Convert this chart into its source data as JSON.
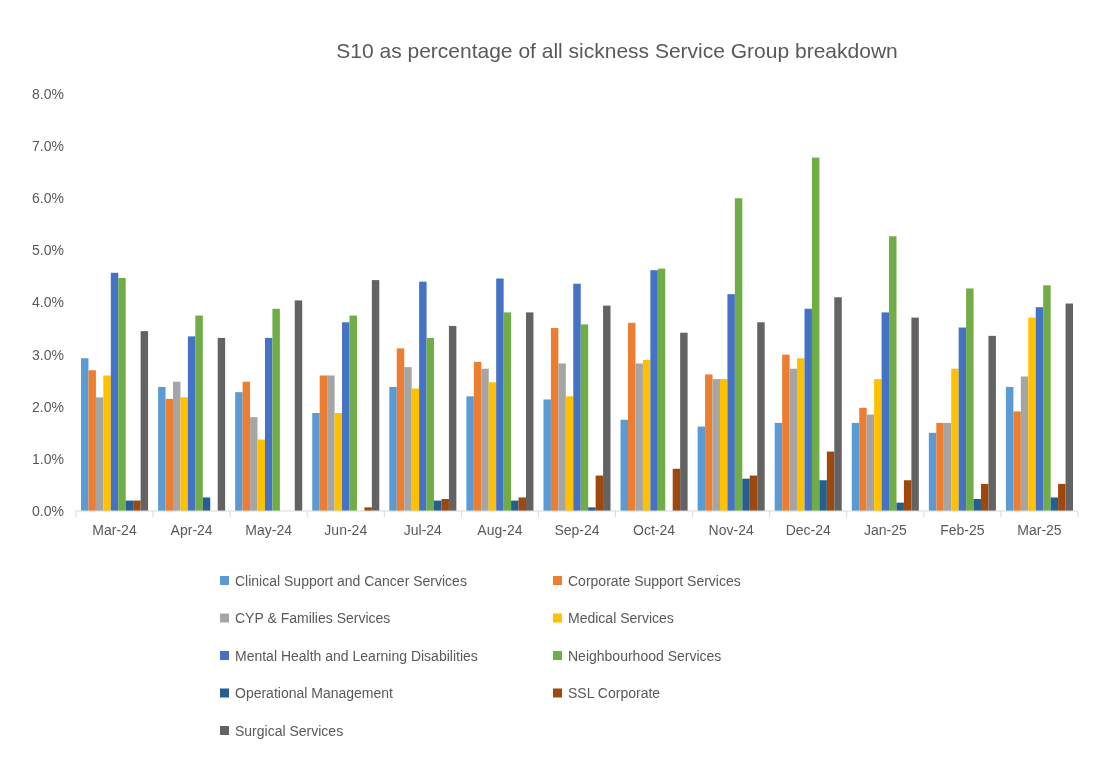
{
  "chart_data": {
    "type": "bar",
    "title": "S10 as percentage of all sickness Service Group breakdown",
    "categories": [
      "Mar-24",
      "Apr-24",
      "May-24",
      "Jun-24",
      "Jul-24",
      "Aug-24",
      "Sep-24",
      "Oct-24",
      "Nov-24",
      "Dec-24",
      "Jan-25",
      "Feb-25",
      "Mar-25"
    ],
    "series": [
      {
        "name": "Clinical Support and Cancer Services",
        "color": "#5b9bd5",
        "values": [
          2.93,
          2.38,
          2.28,
          1.88,
          2.38,
          2.2,
          2.14,
          1.75,
          1.62,
          1.69,
          1.69,
          1.5,
          2.38
        ]
      },
      {
        "name": "Corporate Support Services",
        "color": "#ed7d31",
        "values": [
          2.7,
          2.15,
          2.48,
          2.6,
          3.12,
          2.86,
          3.51,
          3.61,
          2.62,
          3.0,
          1.98,
          1.69,
          1.91
        ]
      },
      {
        "name": "CYP & Families Services",
        "color": "#a5a5a5",
        "values": [
          2.18,
          2.48,
          1.8,
          2.6,
          2.76,
          2.73,
          2.83,
          2.83,
          2.53,
          2.73,
          1.85,
          1.69,
          2.58
        ]
      },
      {
        "name": "Medical Services",
        "color": "#ffc000",
        "values": [
          2.6,
          2.18,
          1.37,
          1.88,
          2.35,
          2.47,
          2.2,
          2.9,
          2.53,
          2.93,
          2.53,
          2.73,
          3.71
        ]
      },
      {
        "name": "Mental Health and Learning Disabilities",
        "color": "#4472c4",
        "values": [
          4.57,
          3.35,
          3.32,
          3.62,
          4.4,
          4.46,
          4.36,
          4.62,
          4.16,
          3.88,
          3.81,
          3.52,
          3.91
        ]
      },
      {
        "name": "Neighbourhood Services",
        "color": "#70ad47",
        "values": [
          4.47,
          3.75,
          3.88,
          3.75,
          3.32,
          3.81,
          3.58,
          4.65,
          6.0,
          6.78,
          5.27,
          4.27,
          4.33
        ]
      },
      {
        "name": "Operational Management",
        "color": "#255e91",
        "values": [
          0.2,
          0.26,
          null,
          null,
          0.2,
          0.2,
          0.07,
          null,
          0.62,
          0.59,
          0.16,
          0.23,
          0.26
        ]
      },
      {
        "name": "SSL Corporate",
        "color": "#9e480e",
        "values": [
          0.2,
          null,
          null,
          0.07,
          0.23,
          0.26,
          0.68,
          0.81,
          0.68,
          1.14,
          0.59,
          0.52,
          0.52
        ]
      },
      {
        "name": "Surgical Services",
        "color": "#636363",
        "values": [
          3.45,
          3.32,
          4.04,
          4.43,
          3.55,
          3.81,
          3.94,
          3.42,
          3.62,
          4.1,
          3.71,
          3.36,
          3.98
        ]
      }
    ],
    "ylim": [
      0,
      8
    ],
    "yticks": [
      {
        "value": 0,
        "label": "0.0%"
      },
      {
        "value": 1,
        "label": "1.0%"
      },
      {
        "value": 2,
        "label": "2.0%"
      },
      {
        "value": 3,
        "label": "3.0%"
      },
      {
        "value": 4,
        "label": "4.0%"
      },
      {
        "value": 5,
        "label": "5.0%"
      },
      {
        "value": 6,
        "label": "6.0%"
      },
      {
        "value": 7,
        "label": "7.0%"
      },
      {
        "value": 8,
        "label": "8.0%"
      }
    ],
    "grid": false,
    "legend": "bottom"
  }
}
